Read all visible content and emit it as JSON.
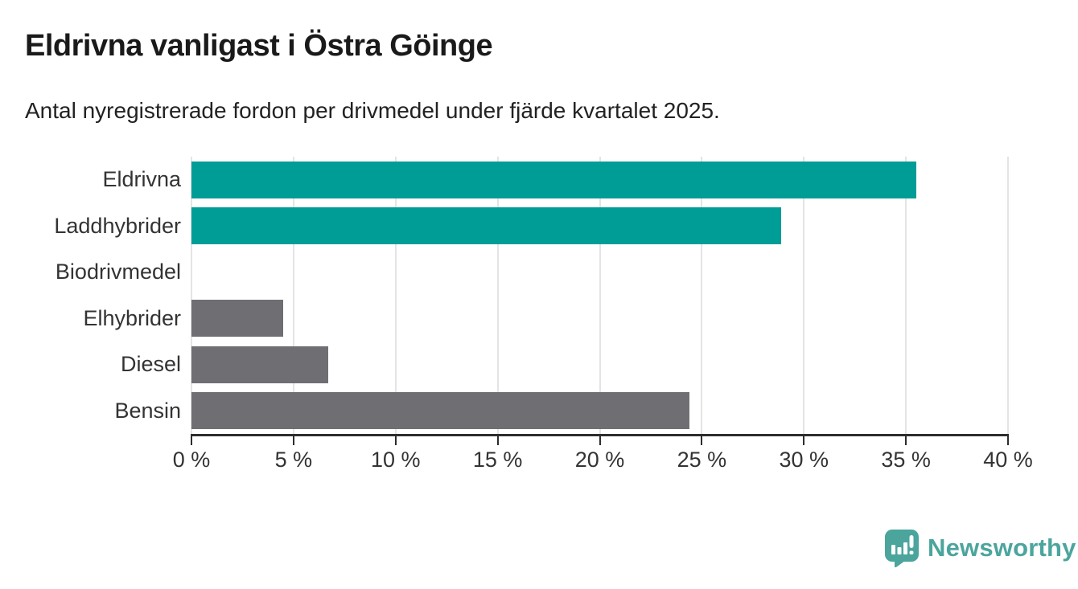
{
  "header": {
    "title": "Eldrivna vanligast i Östra Göinge",
    "subtitle": "Antal nyregistrerade fordon per drivmedel under fjärde kvartalet 2025."
  },
  "chart_data": {
    "type": "bar",
    "orientation": "horizontal",
    "title": "Eldrivna vanligast i Östra Göinge",
    "subtitle": "Antal nyregistrerade fordon per drivmedel under fjärde kvartalet 2025.",
    "categories": [
      "Eldrivna",
      "Laddhybrider",
      "Biodrivmedel",
      "Elhybrider",
      "Diesel",
      "Bensin"
    ],
    "values": [
      35.5,
      28.9,
      0,
      4.5,
      6.7,
      24.4
    ],
    "unit": "%",
    "xlim": [
      0,
      40
    ],
    "xticks": [
      0,
      5,
      10,
      15,
      20,
      25,
      30,
      35,
      40
    ],
    "xtick_suffix": " %",
    "grid": true,
    "legend": "none",
    "bar_colors": [
      "#009d97",
      "#009d97",
      "#6e6e73",
      "#6e6e73",
      "#6e6e73",
      "#6e6e73"
    ]
  },
  "colors": {
    "accent_teal": "#009d97",
    "neutral_gray": "#6e6e73",
    "gridline": "#e4e4e4",
    "axis": "#2d2d2d",
    "text": "#333333",
    "brand_teal": "#4ba59d"
  },
  "footer": {
    "brand": "Newsworthy"
  }
}
